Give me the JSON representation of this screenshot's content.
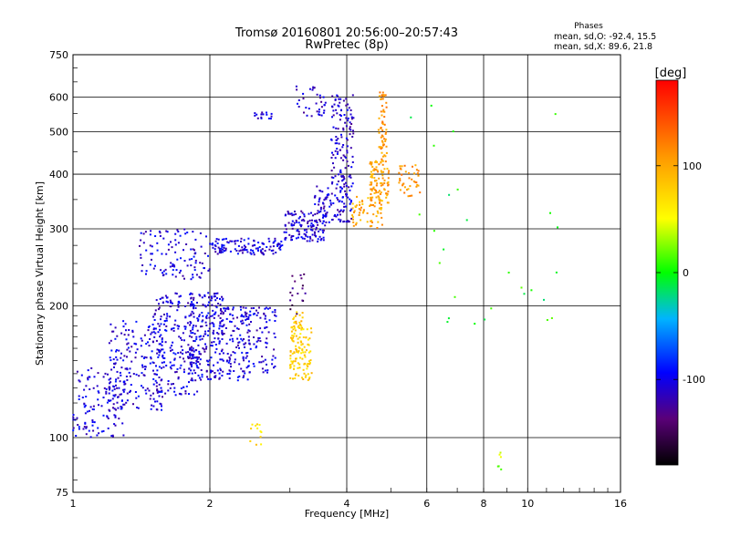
{
  "chart_data": {
    "type": "scatter",
    "title": "Tromsø 20160801 20:56:00–20:57:43",
    "subtitle": "RwPretec (8p)",
    "xlabel": "Frequency [MHz]",
    "ylabel": "Stationary phase Virtual Height [km]",
    "x_scale": "log",
    "y_scale": "log",
    "xlim": [
      1,
      16
    ],
    "ylim": [
      75,
      750
    ],
    "x_ticks": [
      1,
      2,
      4,
      6,
      8,
      10,
      16
    ],
    "x_tick_labels": [
      "1",
      "2",
      "4",
      "6",
      "8",
      "10",
      "16"
    ],
    "x_grid": [
      1,
      2,
      4,
      6,
      8,
      10,
      16
    ],
    "y_ticks": [
      75,
      100,
      200,
      300,
      400,
      500,
      600,
      750
    ],
    "y_tick_labels": [
      "75",
      "100",
      "200",
      "300",
      "400",
      "500",
      "600",
      "750"
    ],
    "grid": true,
    "stats": {
      "heading": "Phases",
      "line_o": "mean, sd,O: -92.4, 15.5",
      "line_x": "mean, sd,X:  89.6, 21.8"
    },
    "colorbar": {
      "label": "[deg]",
      "range": [
        -180,
        180
      ],
      "ticks": [
        100,
        0,
        -100
      ],
      "tick_labels": [
        "100",
        "0",
        "-100"
      ]
    },
    "clusters": [
      {
        "f": [
          1.0,
          1.3
        ],
        "h": [
          100,
          145
        ],
        "phase": -105,
        "n": 130
      },
      {
        "f": [
          1.2,
          1.6
        ],
        "h": [
          115,
          185
        ],
        "phase": -105,
        "n": 180
      },
      {
        "f": [
          1.5,
          1.9
        ],
        "h": [
          125,
          215
        ],
        "phase": -105,
        "n": 220
      },
      {
        "f": [
          1.8,
          2.15
        ],
        "h": [
          135,
          215
        ],
        "phase": -105,
        "n": 200
      },
      {
        "f": [
          2.1,
          2.45
        ],
        "h": [
          135,
          200
        ],
        "phase": -105,
        "n": 130
      },
      {
        "f": [
          2.4,
          2.8
        ],
        "h": [
          140,
          200
        ],
        "phase": -105,
        "n": 80
      },
      {
        "f": [
          1.4,
          2.0
        ],
        "h": [
          230,
          300
        ],
        "phase": -105,
        "n": 110
      },
      {
        "f": [
          2.0,
          2.9
        ],
        "h": [
          262,
          285
        ],
        "phase": -105,
        "n": 120
      },
      {
        "f": [
          2.9,
          3.6
        ],
        "h": [
          280,
          330
        ],
        "phase": -108,
        "n": 120
      },
      {
        "f": [
          3.4,
          4.1
        ],
        "h": [
          310,
          380
        ],
        "phase": -108,
        "n": 110
      },
      {
        "f": [
          3.7,
          4.15
        ],
        "h": [
          380,
          610
        ],
        "phase": -110,
        "n": 120
      },
      {
        "f": [
          3.1,
          3.6
        ],
        "h": [
          540,
          640
        ],
        "phase": -110,
        "n": 35
      },
      {
        "f": [
          2.5,
          2.75
        ],
        "h": [
          535,
          555
        ],
        "phase": -105,
        "n": 15
      },
      {
        "f": [
          3.0,
          3.35
        ],
        "h": [
          135,
          180
        ],
        "phase": 75,
        "n": 110
      },
      {
        "f": [
          3.05,
          3.2
        ],
        "h": [
          175,
          195
        ],
        "phase": 85,
        "n": 20
      },
      {
        "f": [
          3.0,
          3.25
        ],
        "h": [
          190,
          240
        ],
        "phase": -140,
        "n": 18
      },
      {
        "f": [
          4.1,
          4.8
        ],
        "h": [
          300,
          360
        ],
        "phase": 100,
        "n": 60
      },
      {
        "f": [
          4.5,
          4.95
        ],
        "h": [
          340,
          430
        ],
        "phase": 105,
        "n": 100
      },
      {
        "f": [
          4.7,
          4.9
        ],
        "h": [
          430,
          620
        ],
        "phase": 110,
        "n": 60
      },
      {
        "f": [
          5.2,
          5.8
        ],
        "h": [
          355,
          420
        ],
        "phase": 110,
        "n": 40
      },
      {
        "f": [
          2.45,
          2.6
        ],
        "h": [
          96,
          108
        ],
        "phase": 70,
        "n": 12
      },
      {
        "f": [
          8.6,
          9.2
        ],
        "h": [
          84,
          93
        ],
        "phase": 30,
        "n": 6
      },
      {
        "f": [
          5.5,
          12
        ],
        "h": [
          180,
          580
        ],
        "phase": 0,
        "n": 28
      }
    ]
  }
}
